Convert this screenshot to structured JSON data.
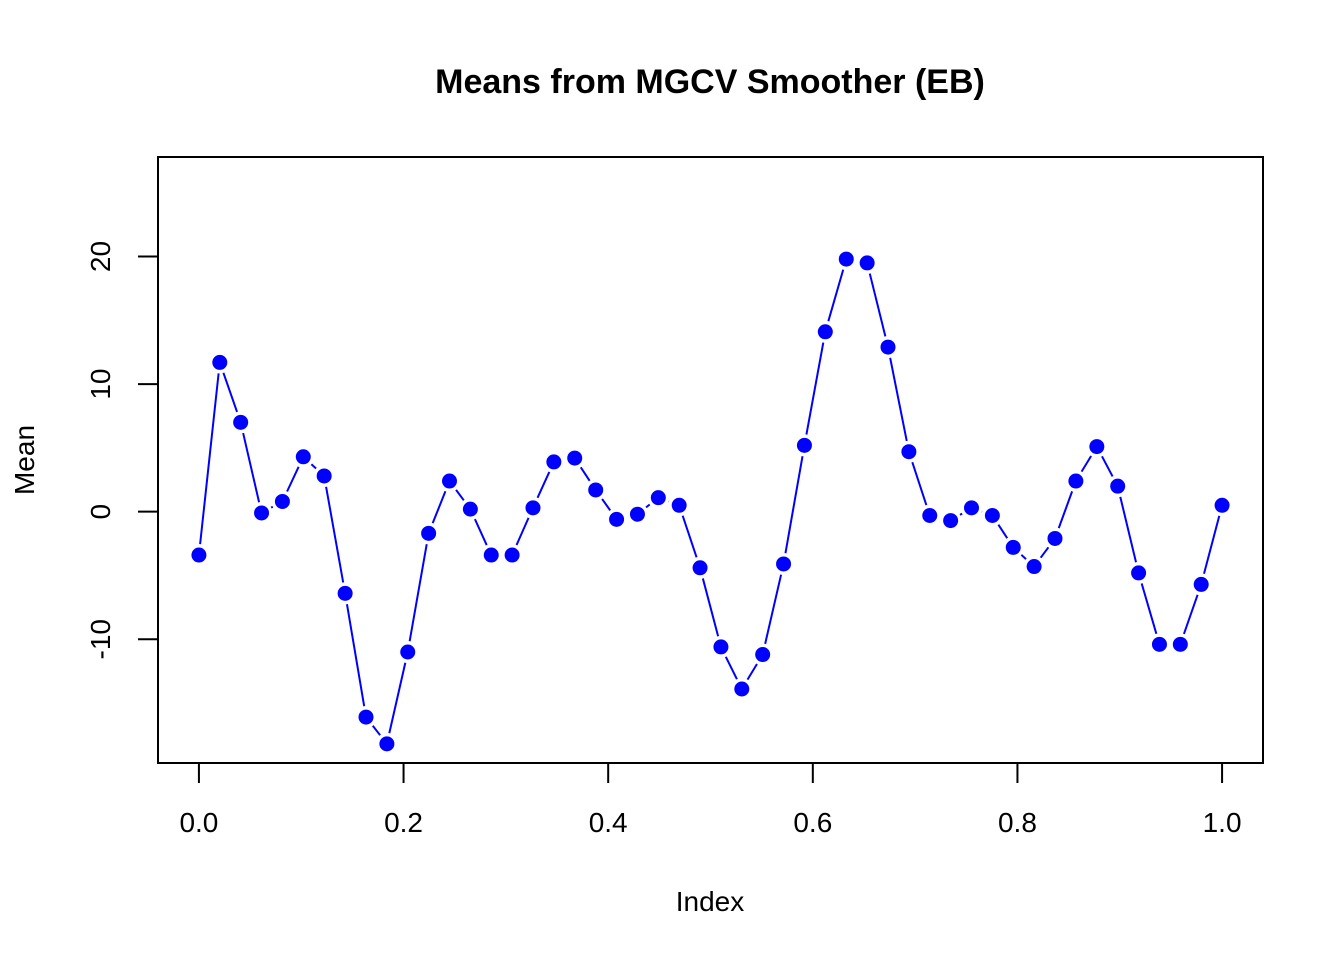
{
  "chart_data": {
    "type": "line",
    "title": "Means from MGCV Smoother (EB)",
    "xlabel": "Index",
    "ylabel": "Mean",
    "xlim": [
      -0.04,
      1.04
    ],
    "ylim": [
      -19.7,
      27.8
    ],
    "xticks": [
      0.0,
      0.2,
      0.4,
      0.6,
      0.8,
      1.0
    ],
    "xtick_labels": [
      "0.0",
      "0.2",
      "0.4",
      "0.6",
      "0.8",
      "1.0"
    ],
    "yticks": [
      -10,
      0,
      10,
      20
    ],
    "ytick_labels": [
      "-10",
      "0",
      "10",
      "20"
    ],
    "grid": false,
    "series": [
      {
        "color": "#0000ff",
        "marker": "filled-circle",
        "line_style": "solid-with-gaps",
        "x": [
          0.0,
          0.0204,
          0.0408,
          0.0612,
          0.0816,
          0.102,
          0.1224,
          0.1429,
          0.1633,
          0.1837,
          0.2041,
          0.2245,
          0.2449,
          0.2653,
          0.2857,
          0.3061,
          0.3265,
          0.3469,
          0.3673,
          0.3878,
          0.4082,
          0.4286,
          0.449,
          0.4694,
          0.4898,
          0.5102,
          0.5306,
          0.551,
          0.5714,
          0.5918,
          0.6122,
          0.6327,
          0.6531,
          0.6735,
          0.6939,
          0.7143,
          0.7347,
          0.7551,
          0.7755,
          0.7959,
          0.8163,
          0.8367,
          0.8571,
          0.8776,
          0.898,
          0.9184,
          0.9388,
          0.9592,
          0.9796,
          1.0
        ],
        "values": [
          -3.4,
          11.7,
          7.0,
          -0.1,
          0.8,
          4.3,
          2.8,
          -6.4,
          -16.1,
          -18.2,
          -11.0,
          -1.7,
          2.4,
          0.2,
          -3.4,
          -3.4,
          0.3,
          3.9,
          4.2,
          1.7,
          -0.6,
          -0.2,
          1.1,
          0.5,
          -4.4,
          -10.6,
          -13.9,
          -11.2,
          -4.1,
          5.2,
          14.1,
          19.8,
          19.5,
          12.9,
          4.7,
          -0.3,
          -0.7,
          0.3,
          -0.3,
          -2.8,
          -4.3,
          -2.1,
          2.4,
          5.1,
          2.0,
          -4.8,
          -10.4,
          -10.4,
          -5.7,
          0.5
        ]
      }
    ]
  }
}
